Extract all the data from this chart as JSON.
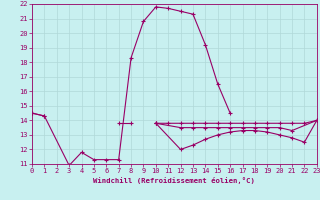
{
  "xlabel": "Windchill (Refroidissement éolien,°C)",
  "bg_color": "#c8f0f0",
  "grid_color": "#b0d8d8",
  "line_color": "#990066",
  "xmin": 0,
  "xmax": 23,
  "ymin": 11,
  "ymax": 22,
  "series": [
    {
      "segments": [
        {
          "x": [
            0,
            1
          ],
          "y": [
            14.5,
            14.3
          ]
        },
        {
          "x": [
            7,
            8
          ],
          "y": [
            13.8,
            13.8
          ]
        },
        {
          "x": [
            10,
            11,
            12,
            13,
            14,
            15,
            16,
            17,
            18,
            19,
            20,
            21,
            22,
            23
          ],
          "y": [
            13.8,
            13.8,
            13.8,
            13.8,
            13.8,
            13.8,
            13.8,
            13.8,
            13.8,
            13.8,
            13.8,
            13.8,
            13.8,
            14.0
          ]
        }
      ]
    },
    {
      "segments": [
        {
          "x": [
            0,
            1,
            3,
            4,
            5,
            6,
            7,
            8,
            9,
            10,
            11,
            12,
            13,
            14,
            15,
            16
          ],
          "y": [
            14.5,
            14.3,
            10.9,
            11.8,
            11.3,
            11.3,
            11.3,
            18.3,
            20.8,
            21.8,
            21.7,
            21.5,
            21.3,
            19.2,
            16.5,
            14.5
          ]
        }
      ]
    },
    {
      "segments": [
        {
          "x": [
            10,
            12,
            13,
            14,
            15,
            16,
            17,
            18,
            19,
            20,
            21,
            22,
            23
          ],
          "y": [
            13.8,
            12.0,
            12.3,
            12.7,
            13.0,
            13.2,
            13.3,
            13.3,
            13.2,
            13.0,
            12.8,
            12.5,
            14.0
          ]
        }
      ]
    },
    {
      "segments": [
        {
          "x": [
            10,
            12,
            13,
            14,
            15,
            16,
            17,
            18,
            19,
            20,
            21,
            23
          ],
          "y": [
            13.8,
            13.5,
            13.5,
            13.5,
            13.5,
            13.5,
            13.5,
            13.5,
            13.5,
            13.5,
            13.3,
            14.0
          ]
        }
      ]
    }
  ]
}
